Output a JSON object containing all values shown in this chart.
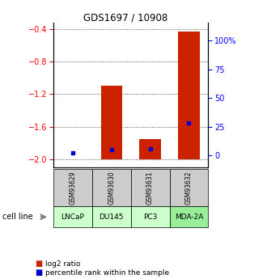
{
  "title": "GDS1697 / 10908",
  "samples": [
    "GSM93629",
    "GSM93630",
    "GSM93631",
    "GSM93632"
  ],
  "cell_lines": [
    "LNCaP",
    "DU145",
    "PC3",
    "MDA-2A"
  ],
  "log2_ratio": [
    -2.0,
    -1.1,
    -1.75,
    -0.43
  ],
  "percentile_rank": [
    2,
    5,
    6,
    28
  ],
  "bar_bottom": -2.0,
  "ylim_left": [
    -2.1,
    -0.32
  ],
  "yticks_left": [
    -2.0,
    -1.6,
    -1.2,
    -0.8,
    -0.4
  ],
  "yticks_right": [
    0,
    25,
    50,
    75,
    100
  ],
  "ylim_right": [
    -10.5,
    116
  ],
  "bar_color": "#cc2200",
  "blue_color": "#0000cc",
  "cell_line_colors": [
    "#ccffcc",
    "#ccffcc",
    "#ccffcc",
    "#99ee99"
  ],
  "gsm_box_color": "#cccccc",
  "legend_red_label": "log2 ratio",
  "legend_blue_label": "percentile rank within the sample"
}
